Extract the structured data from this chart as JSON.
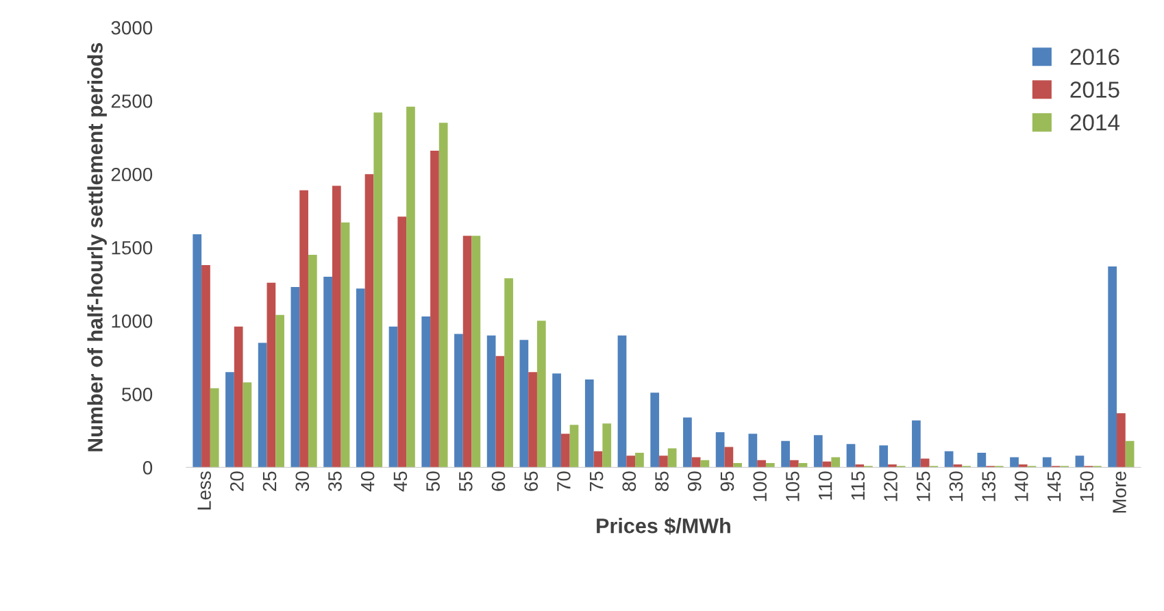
{
  "chart_data": {
    "type": "bar",
    "xlabel": "Prices $/MWh",
    "ylabel": "Number of half-hourly settlement periods",
    "categories": [
      "Less",
      "20",
      "25",
      "30",
      "35",
      "40",
      "45",
      "50",
      "55",
      "60",
      "65",
      "70",
      "75",
      "80",
      "85",
      "90",
      "95",
      "100",
      "105",
      "110",
      "115",
      "120",
      "125",
      "130",
      "135",
      "140",
      "145",
      "150",
      "More"
    ],
    "series": [
      {
        "name": "2016",
        "color": "#4f81bd",
        "values": [
          1590,
          650,
          850,
          1230,
          1300,
          1220,
          960,
          1030,
          910,
          900,
          870,
          640,
          600,
          900,
          510,
          340,
          240,
          230,
          180,
          220,
          160,
          150,
          320,
          110,
          100,
          70,
          70,
          80,
          1370
        ]
      },
      {
        "name": "2015",
        "color": "#c0504d",
        "values": [
          1380,
          960,
          1260,
          1890,
          1920,
          2000,
          1710,
          2160,
          1580,
          760,
          650,
          230,
          110,
          80,
          80,
          70,
          140,
          50,
          50,
          40,
          20,
          20,
          60,
          20,
          10,
          20,
          10,
          10,
          370
        ]
      },
      {
        "name": "2014",
        "color": "#9bbb59",
        "values": [
          540,
          580,
          1040,
          1450,
          1670,
          2420,
          2460,
          2350,
          1580,
          1290,
          1000,
          290,
          300,
          100,
          130,
          50,
          30,
          30,
          30,
          70,
          10,
          10,
          10,
          10,
          10,
          10,
          10,
          10,
          180
        ]
      }
    ],
    "ylim": [
      0,
      3000
    ],
    "yticks": [
      0,
      500,
      1000,
      1500,
      2000,
      2500,
      3000
    ],
    "grid": false,
    "legend": "top right"
  }
}
